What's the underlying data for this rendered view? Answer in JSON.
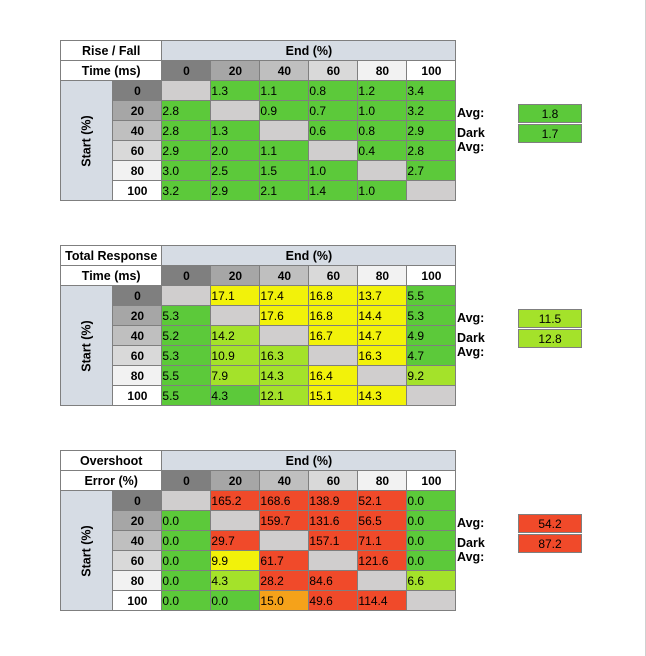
{
  "colors": {
    "header_bg": "#d6dce4",
    "green": "#5cc93a",
    "light_green": "#a4e22a",
    "yellow": "#f2f20a",
    "orange": "#f5a21a",
    "red": "#f04a2a",
    "gray_cell": "#d0cece",
    "hdr_0": "#7f7f7f",
    "hdr_20": "#a6a6a6",
    "hdr_40": "#bfbfbf",
    "hdr_60": "#d9d9d9",
    "hdr_80": "#f2f2f2",
    "hdr_100": "#ffffff"
  },
  "headers": {
    "end": "End (%)",
    "start": "Start (%)",
    "cols": [
      "0",
      "20",
      "40",
      "60",
      "80",
      "100"
    ],
    "rows": [
      "0",
      "20",
      "40",
      "60",
      "80",
      "100"
    ]
  },
  "tables": [
    {
      "title_line1": "Rise / Fall",
      "title_line2": "Time (ms)",
      "cells": [
        [
          "",
          "1.3",
          "1.1",
          "0.8",
          "1.2",
          "3.4"
        ],
        [
          "2.8",
          "",
          "0.9",
          "0.7",
          "1.0",
          "3.2"
        ],
        [
          "2.8",
          "1.3",
          "",
          "0.6",
          "0.8",
          "2.9"
        ],
        [
          "2.9",
          "2.0",
          "1.1",
          "",
          "0.4",
          "2.8"
        ],
        [
          "3.0",
          "2.5",
          "1.5",
          "1.0",
          "",
          "2.7"
        ],
        [
          "3.2",
          "2.9",
          "2.1",
          "1.4",
          "1.0",
          ""
        ]
      ],
      "colors": [
        [
          "gray_cell",
          "green",
          "green",
          "green",
          "green",
          "green"
        ],
        [
          "green",
          "gray_cell",
          "green",
          "green",
          "green",
          "green"
        ],
        [
          "green",
          "green",
          "gray_cell",
          "green",
          "green",
          "green"
        ],
        [
          "green",
          "green",
          "green",
          "gray_cell",
          "green",
          "green"
        ],
        [
          "green",
          "green",
          "green",
          "green",
          "gray_cell",
          "green"
        ],
        [
          "green",
          "green",
          "green",
          "green",
          "green",
          "gray_cell"
        ]
      ],
      "avg_label": "Avg:",
      "avg": "1.8",
      "avg_color": "green",
      "dark_avg_label": "Dark Avg:",
      "dark_avg": "1.7",
      "dark_avg_color": "green"
    },
    {
      "title_line1": "Total Response",
      "title_line2": "Time (ms)",
      "cells": [
        [
          "",
          "17.1",
          "17.4",
          "16.8",
          "13.7",
          "5.5"
        ],
        [
          "5.3",
          "",
          "17.6",
          "16.8",
          "14.4",
          "5.3"
        ],
        [
          "5.2",
          "14.2",
          "",
          "16.7",
          "14.7",
          "4.9"
        ],
        [
          "5.3",
          "10.9",
          "16.3",
          "",
          "16.3",
          "4.7"
        ],
        [
          "5.5",
          "7.9",
          "14.3",
          "16.4",
          "",
          "9.2"
        ],
        [
          "5.5",
          "4.3",
          "12.1",
          "15.1",
          "14.3",
          ""
        ]
      ],
      "colors": [
        [
          "gray_cell",
          "yellow",
          "yellow",
          "yellow",
          "yellow",
          "green"
        ],
        [
          "green",
          "gray_cell",
          "yellow",
          "yellow",
          "yellow",
          "green"
        ],
        [
          "green",
          "light_green",
          "gray_cell",
          "yellow",
          "yellow",
          "green"
        ],
        [
          "green",
          "light_green",
          "light_green",
          "gray_cell",
          "yellow",
          "green"
        ],
        [
          "green",
          "light_green",
          "light_green",
          "yellow",
          "gray_cell",
          "light_green"
        ],
        [
          "green",
          "green",
          "light_green",
          "yellow",
          "yellow",
          "gray_cell"
        ]
      ],
      "avg_label": "Avg:",
      "avg": "11.5",
      "avg_color": "light_green",
      "dark_avg_label": "Dark Avg:",
      "dark_avg": "12.8",
      "dark_avg_color": "light_green"
    },
    {
      "title_line1": "Overshoot",
      "title_line2": "Error (%)",
      "cells": [
        [
          "",
          "165.2",
          "168.6",
          "138.9",
          "52.1",
          "0.0"
        ],
        [
          "0.0",
          "",
          "159.7",
          "131.6",
          "56.5",
          "0.0"
        ],
        [
          "0.0",
          "29.7",
          "",
          "157.1",
          "71.1",
          "0.0"
        ],
        [
          "0.0",
          "9.9",
          "61.7",
          "",
          "121.6",
          "0.0"
        ],
        [
          "0.0",
          "4.3",
          "28.2",
          "84.6",
          "",
          "6.6"
        ],
        [
          "0.0",
          "0.0",
          "15.0",
          "49.6",
          "114.4",
          ""
        ]
      ],
      "colors": [
        [
          "gray_cell",
          "red",
          "red",
          "red",
          "red",
          "green"
        ],
        [
          "green",
          "gray_cell",
          "red",
          "red",
          "red",
          "green"
        ],
        [
          "green",
          "red",
          "gray_cell",
          "red",
          "red",
          "green"
        ],
        [
          "green",
          "yellow",
          "red",
          "gray_cell",
          "red",
          "green"
        ],
        [
          "green",
          "light_green",
          "red",
          "red",
          "gray_cell",
          "light_green"
        ],
        [
          "green",
          "green",
          "orange",
          "red",
          "red",
          "gray_cell"
        ]
      ],
      "avg_label": "Avg:",
      "avg": "54.2",
      "avg_color": "red",
      "dark_avg_label": "Dark Avg:",
      "dark_avg": "87.2",
      "dark_avg_color": "red"
    }
  ]
}
